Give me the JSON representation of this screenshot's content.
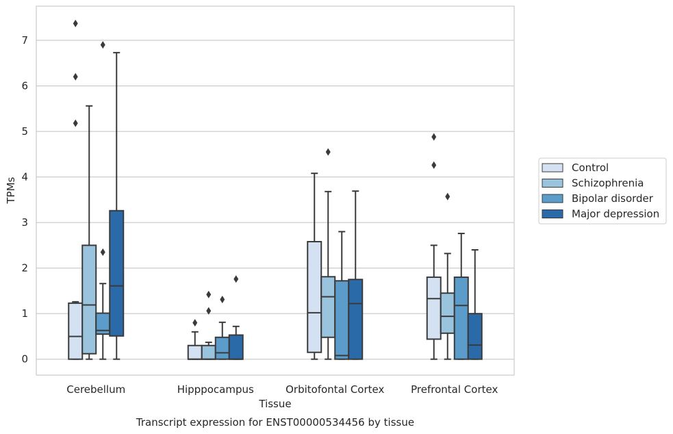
{
  "chart_data": {
    "type": "box",
    "title": "",
    "caption": "Transcript expression for ENST00000534456 by tissue",
    "xlabel": "Tissue",
    "ylabel": "TPMs",
    "ylim": [
      -0.35,
      7.75
    ],
    "yticks": [
      0,
      1,
      2,
      3,
      4,
      5,
      6,
      7
    ],
    "categories": [
      "Cerebellum",
      "Hipppocampus",
      "Orbitofontal Cortex",
      "Prefrontal Cortex"
    ],
    "grid": "horizontal",
    "legend_position": "right",
    "series": [
      {
        "name": "Control",
        "color": "#d3e1f2",
        "boxes": [
          {
            "whislo": 0.0,
            "q1": 0.0,
            "med": 0.5,
            "q3": 1.23,
            "whishi": 1.26,
            "fliers": [
              5.18,
              6.2,
              7.37
            ]
          },
          {
            "whislo": 0.0,
            "q1": 0.0,
            "med": 0.0,
            "q3": 0.3,
            "whishi": 0.6,
            "fliers": [
              0.8
            ]
          },
          {
            "whislo": 0.0,
            "q1": 0.15,
            "med": 1.02,
            "q3": 2.58,
            "whishi": 4.08,
            "fliers": []
          },
          {
            "whislo": 0.0,
            "q1": 0.44,
            "med": 1.33,
            "q3": 1.8,
            "whishi": 2.5,
            "fliers": [
              4.26,
              4.88
            ]
          }
        ]
      },
      {
        "name": "Schizophrenia",
        "color": "#9ac3de",
        "boxes": [
          {
            "whislo": 0.0,
            "q1": 0.12,
            "med": 1.19,
            "q3": 2.5,
            "whishi": 5.56,
            "fliers": []
          },
          {
            "whislo": 0.0,
            "q1": 0.0,
            "med": 0.0,
            "q3": 0.3,
            "whishi": 0.37,
            "fliers": [
              1.06,
              1.42
            ]
          },
          {
            "whislo": 0.0,
            "q1": 0.48,
            "med": 1.37,
            "q3": 1.81,
            "whishi": 3.68,
            "fliers": [
              4.55
            ]
          },
          {
            "whislo": 0.0,
            "q1": 0.57,
            "med": 0.94,
            "q3": 1.45,
            "whishi": 2.32,
            "fliers": [
              3.57
            ]
          }
        ]
      },
      {
        "name": "Bipolar disorder",
        "color": "#5b9ccb",
        "boxes": [
          {
            "whislo": 0.0,
            "q1": 0.55,
            "med": 0.63,
            "q3": 1.01,
            "whishi": 1.66,
            "fliers": [
              2.35,
              6.9
            ]
          },
          {
            "whislo": 0.0,
            "q1": 0.0,
            "med": 0.14,
            "q3": 0.48,
            "whishi": 0.81,
            "fliers": [
              1.31
            ]
          },
          {
            "whislo": 0.0,
            "q1": 0.0,
            "med": 0.08,
            "q3": 1.72,
            "whishi": 2.8,
            "fliers": []
          },
          {
            "whislo": 0.0,
            "q1": 0.0,
            "med": 1.18,
            "q3": 1.8,
            "whishi": 2.76,
            "fliers": []
          }
        ]
      },
      {
        "name": "Major depression",
        "color": "#2b6aa8",
        "boxes": [
          {
            "whislo": 0.0,
            "q1": 0.51,
            "med": 1.61,
            "q3": 3.26,
            "whishi": 6.73,
            "fliers": []
          },
          {
            "whislo": 0.0,
            "q1": 0.0,
            "med": 0.0,
            "q3": 0.53,
            "whishi": 0.72,
            "fliers": [
              1.76
            ]
          },
          {
            "whislo": 0.0,
            "q1": 0.0,
            "med": 1.22,
            "q3": 1.75,
            "whishi": 3.69,
            "fliers": []
          },
          {
            "whislo": 0.0,
            "q1": 0.0,
            "med": 0.31,
            "q3": 1.0,
            "whishi": 2.4,
            "fliers": []
          }
        ]
      }
    ]
  }
}
